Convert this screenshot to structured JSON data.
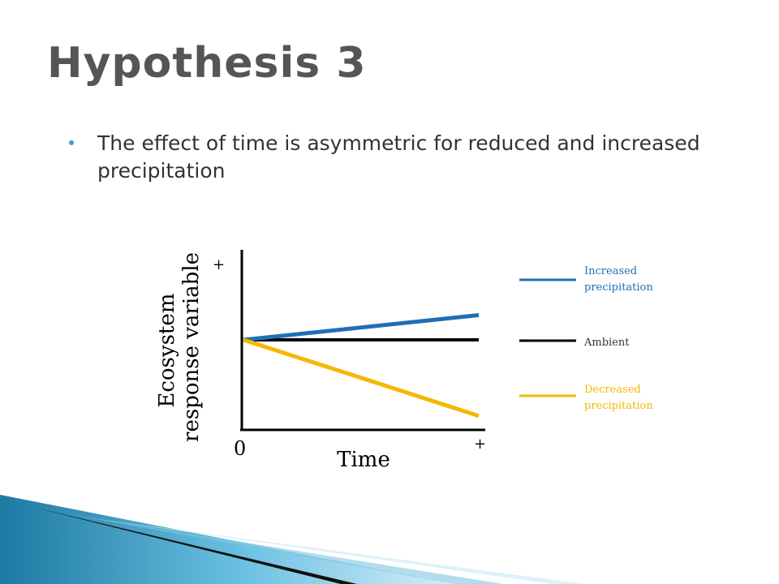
{
  "slide": {
    "title": "Hypothesis 3",
    "bullet": "The effect of time is asymmetric for reduced and increased precipitation"
  },
  "colors": {
    "increased": "#1f6fb5",
    "ambient": "#000000",
    "decreased": "#f5b800",
    "bullet": "#3aa0c8"
  },
  "chart_data": {
    "type": "line",
    "title": "",
    "xlabel": "Time",
    "ylabel": [
      "Ecosystem",
      "response variable"
    ],
    "x_tick_labels": {
      "origin": "0",
      "end": "+"
    },
    "y_tick_labels": {
      "end": "+"
    },
    "xlim": [
      0,
      1
    ],
    "ylim": [
      0,
      1
    ],
    "grid": false,
    "legend_position": "right",
    "series": [
      {
        "name": "Increased precipitation",
        "legend_lines": [
          "Increased",
          "precipitation"
        ],
        "color": "#1f6fb5",
        "x": [
          0,
          1
        ],
        "y": [
          0.5,
          0.64
        ]
      },
      {
        "name": "Ambient",
        "legend_lines": [
          "Ambient"
        ],
        "color": "#000000",
        "x": [
          0,
          1
        ],
        "y": [
          0.5,
          0.5
        ]
      },
      {
        "name": "Decreased precipitation",
        "legend_lines": [
          "Decreased",
          "precipitation"
        ],
        "color": "#f5b800",
        "x": [
          0,
          1
        ],
        "y": [
          0.5,
          0.07
        ]
      }
    ]
  }
}
